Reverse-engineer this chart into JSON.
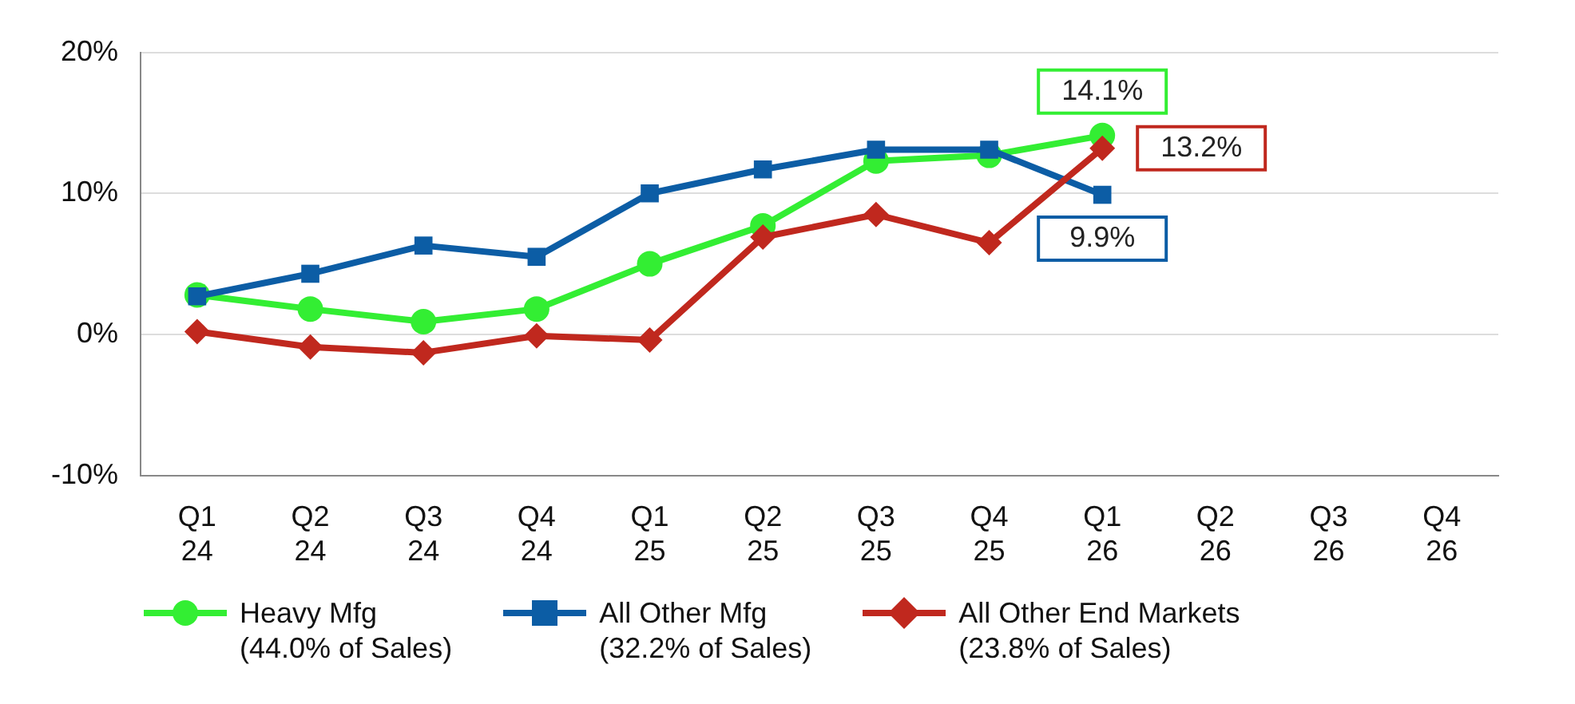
{
  "chart_data": {
    "type": "line",
    "categories": [
      "Q1 24",
      "Q2 24",
      "Q3 24",
      "Q4 24",
      "Q1 25",
      "Q2 25",
      "Q3 25",
      "Q4 25",
      "Q1 26",
      "Q2 26",
      "Q3 26",
      "Q4 26"
    ],
    "series": [
      {
        "name": "Heavy Mfg\n(44.0% of Sales)",
        "color": "#33ee33",
        "marker": "circle",
        "values": [
          2.8,
          1.8,
          0.9,
          1.8,
          5.0,
          7.7,
          12.3,
          12.7,
          14.1,
          null,
          null,
          null
        ],
        "value_labels": [
          null,
          null,
          null,
          null,
          null,
          null,
          null,
          null,
          "14.1%",
          null,
          null,
          null
        ]
      },
      {
        "name": "All Other Mfg\n(32.2% of Sales)",
        "color": "#0c5da5",
        "marker": "square",
        "values": [
          2.7,
          4.3,
          6.3,
          5.5,
          10.0,
          11.7,
          13.1,
          13.1,
          9.9,
          null,
          null,
          null
        ],
        "value_labels": [
          null,
          null,
          null,
          null,
          null,
          null,
          null,
          null,
          "9.9%",
          null,
          null,
          null
        ]
      },
      {
        "name": "All Other End Markets\n(23.8% of Sales)",
        "color": "#c0281e",
        "marker": "diamond",
        "values": [
          0.2,
          -0.9,
          -1.3,
          -0.1,
          -0.4,
          6.9,
          8.5,
          6.5,
          13.2,
          null,
          null,
          null
        ],
        "value_labels": [
          null,
          null,
          null,
          null,
          null,
          null,
          null,
          null,
          "13.2%",
          null,
          null,
          null
        ]
      }
    ],
    "ylim": [
      -10,
      20
    ],
    "yticks": [
      {
        "value": -10,
        "label": "-10%"
      },
      {
        "value": 0,
        "label": "0%"
      },
      {
        "value": 10,
        "label": "10%"
      },
      {
        "value": 20,
        "label": "20%"
      }
    ],
    "grid": "y",
    "legend": "bottom",
    "line_style": "solid"
  }
}
